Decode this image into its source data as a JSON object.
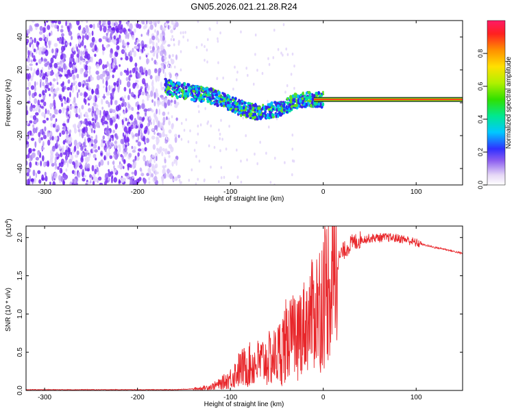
{
  "title": "GN05.2026.021.21.28.R24",
  "chart_data": [
    {
      "type": "heatmap",
      "name": "spectrogram",
      "xlabel": "Height of straight line (km)",
      "ylabel": "Frequency (Hz)",
      "xlim": [
        -320,
        150
      ],
      "ylim": [
        -50,
        50
      ],
      "xticks": [
        -300,
        -200,
        -100,
        0,
        100
      ],
      "yticks": [
        -40,
        -20,
        0,
        20,
        40
      ],
      "noise_region_x": [
        -320,
        -170
      ],
      "signal_track": {
        "x": [
          -170,
          -160,
          -150,
          -140,
          -130,
          -120,
          -110,
          -100,
          -90,
          -80,
          -70,
          -60,
          -50,
          -40,
          -30,
          -20,
          -10,
          0,
          10,
          20,
          40,
          60,
          80,
          100,
          120,
          150
        ],
        "y": [
          10,
          8,
          7,
          6,
          5,
          4,
          2,
          0,
          -3,
          -5,
          -6,
          -5,
          -4,
          -2,
          1,
          2,
          2,
          2,
          2,
          2,
          2,
          2,
          2,
          2,
          2,
          2
        ]
      },
      "colorbar": {
        "label": "Normalized spectral amplitude",
        "range": [
          0,
          1
        ],
        "ticks": [
          0.0,
          0.2,
          0.4,
          0.6,
          0.8
        ]
      }
    },
    {
      "type": "line",
      "name": "snr",
      "xlabel": "Height of straight line (km)",
      "ylabel": "SNR (10 * v/v)",
      "scale_label": "(x10",
      "scale_exp": "4",
      "scale_close": ")",
      "xlim": [
        -320,
        150
      ],
      "ylim": [
        0,
        2.15
      ],
      "xticks": [
        -300,
        -200,
        -100,
        0,
        100
      ],
      "yticks": [
        0.0,
        0.5,
        1.0,
        1.5,
        2.0
      ],
      "series": [
        {
          "name": "SNR",
          "color": "#e8262a",
          "x": [
            -320,
            -280,
            -240,
            -200,
            -160,
            -140,
            -130,
            -120,
            -110,
            -100,
            -90,
            -80,
            -70,
            -60,
            -50,
            -40,
            -30,
            -20,
            -10,
            0,
            10,
            20,
            30,
            40,
            50,
            60,
            70,
            80,
            90,
            100,
            110,
            120,
            130,
            140,
            150
          ],
          "y": [
            0.01,
            0.01,
            0.01,
            0.01,
            0.01,
            0.02,
            0.03,
            0.05,
            0.09,
            0.16,
            0.28,
            0.33,
            0.36,
            0.4,
            0.45,
            0.65,
            0.75,
            0.85,
            1.02,
            1.25,
            1.55,
            1.8,
            1.92,
            1.97,
            1.99,
            2.0,
            2.0,
            1.99,
            1.97,
            1.93,
            1.9,
            1.87,
            1.85,
            1.82,
            1.79
          ]
        }
      ]
    }
  ]
}
